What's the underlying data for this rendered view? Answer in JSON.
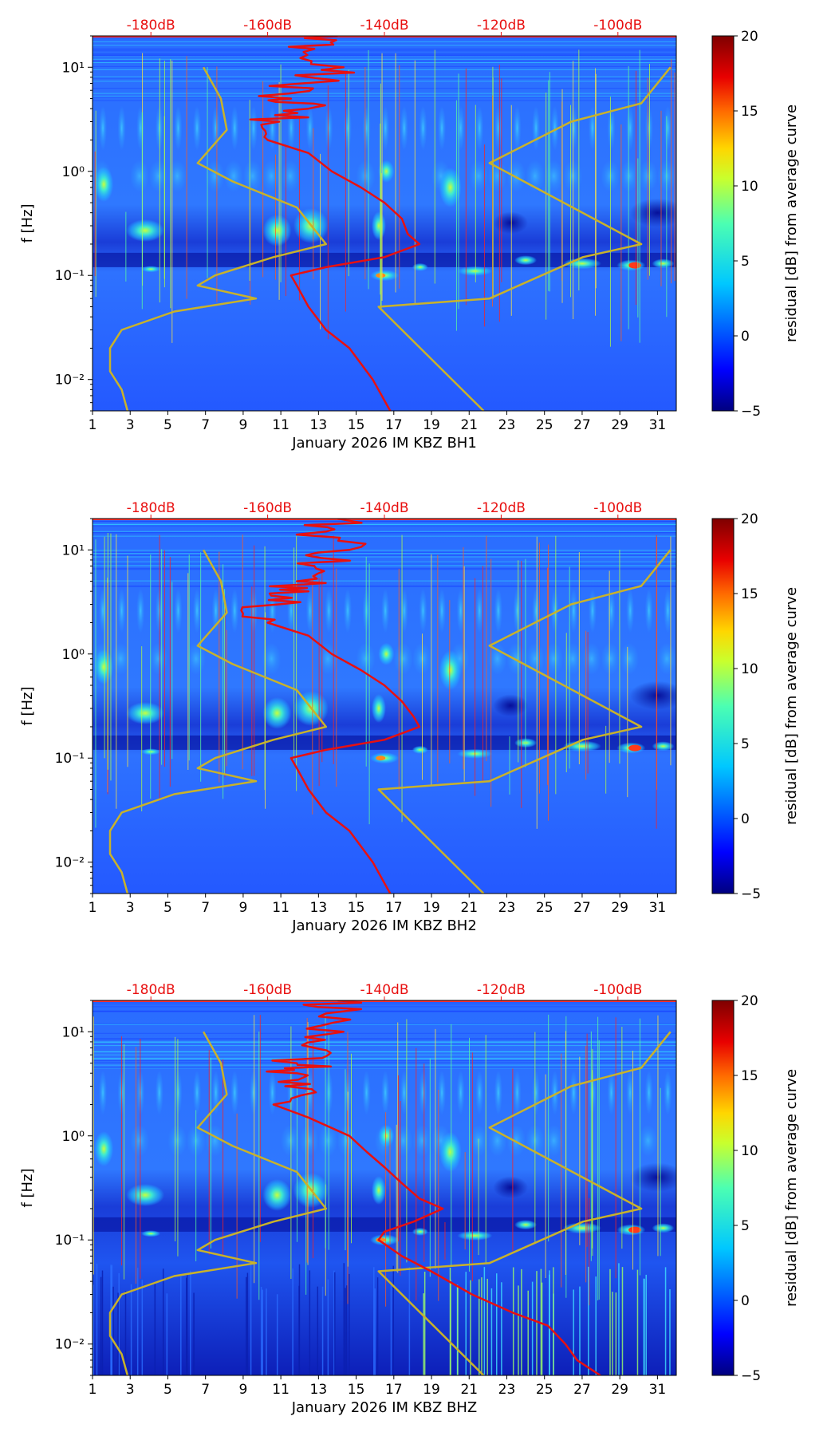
{
  "chart_data": [
    {
      "type": "heatmap",
      "channel": "BH1",
      "xlabel": "January 2026 IM KBZ  BH1",
      "ylabel": "f [Hz]",
      "x_ticks": [
        "1",
        "3",
        "5",
        "7",
        "9",
        "11",
        "13",
        "15",
        "17",
        "19",
        "21",
        "23",
        "25",
        "27",
        "29",
        "31"
      ],
      "y_ticks": [
        "10⁻²",
        "10⁻¹",
        "10⁰",
        "10¹"
      ],
      "top_ticks": [
        "-180dB",
        "-160dB",
        "-140dB",
        "-120dB",
        "-100dB"
      ],
      "colorbar": {
        "label": "residual [dB] from average curve",
        "ticks": [
          "−5",
          "0",
          "5",
          "10",
          "15",
          "20"
        ],
        "range": [
          -5,
          20
        ]
      },
      "day_range": [
        1,
        32
      ],
      "freq_range": [
        0.005,
        20
      ],
      "noise_db_range": [
        -190,
        -90
      ],
      "median_curve": [
        [
          20,
          -148
        ],
        [
          15,
          -152
        ],
        [
          10,
          -147
        ],
        [
          7,
          -154
        ],
        [
          5,
          -156
        ],
        [
          4,
          -153
        ],
        [
          3,
          -158
        ],
        [
          2,
          -160
        ],
        [
          1.5,
          -153
        ],
        [
          1,
          -149
        ],
        [
          0.7,
          -144
        ],
        [
          0.5,
          -140
        ],
        [
          0.35,
          -137
        ],
        [
          0.25,
          -136
        ],
        [
          0.2,
          -134
        ],
        [
          0.15,
          -140
        ],
        [
          0.12,
          -150
        ],
        [
          0.1,
          -156
        ],
        [
          0.08,
          -155
        ],
        [
          0.05,
          -153
        ],
        [
          0.03,
          -150
        ],
        [
          0.02,
          -146
        ],
        [
          0.01,
          -142
        ],
        [
          0.005,
          -139
        ]
      ],
      "model_low": [
        [
          10,
          -171
        ],
        [
          5,
          -168
        ],
        [
          2.5,
          -167
        ],
        [
          1.2,
          -172
        ],
        [
          0.8,
          -166
        ],
        [
          0.45,
          -155
        ],
        [
          0.2,
          -150
        ],
        [
          0.15,
          -159
        ],
        [
          0.1,
          -169
        ],
        [
          0.08,
          -172
        ],
        [
          0.06,
          -162
        ],
        [
          0.045,
          -176
        ],
        [
          0.03,
          -185
        ],
        [
          0.02,
          -187
        ],
        [
          0.012,
          -187
        ],
        [
          0.008,
          -185
        ],
        [
          0.005,
          -184
        ]
      ],
      "model_high": [
        [
          10,
          -91
        ],
        [
          4.5,
          -96
        ],
        [
          3,
          -108
        ],
        [
          1.2,
          -122
        ],
        [
          0.2,
          -96
        ],
        [
          0.15,
          -106
        ],
        [
          0.06,
          -122
        ],
        [
          0.05,
          -141
        ],
        [
          0.005,
          -123
        ]
      ]
    },
    {
      "type": "heatmap",
      "channel": "BH2",
      "xlabel": "January 2026 IM KBZ  BH2",
      "ylabel": "f [Hz]",
      "x_ticks": [
        "1",
        "3",
        "5",
        "7",
        "9",
        "11",
        "13",
        "15",
        "17",
        "19",
        "21",
        "23",
        "25",
        "27",
        "29",
        "31"
      ],
      "y_ticks": [
        "10⁻²",
        "10⁻¹",
        "10⁰",
        "10¹"
      ],
      "top_ticks": [
        "-180dB",
        "-160dB",
        "-140dB",
        "-120dB",
        "-100dB"
      ],
      "colorbar": {
        "label": "residual [dB] from average curve",
        "ticks": [
          "−5",
          "0",
          "5",
          "10",
          "15",
          "20"
        ],
        "range": [
          -5,
          20
        ]
      },
      "day_range": [
        1,
        32
      ],
      "freq_range": [
        0.005,
        20
      ],
      "noise_db_range": [
        -190,
        -90
      ],
      "median_curve": [
        [
          20,
          -148
        ],
        [
          15,
          -150
        ],
        [
          10,
          -146
        ],
        [
          7,
          -152
        ],
        [
          5,
          -155
        ],
        [
          4,
          -153
        ],
        [
          3,
          -158
        ],
        [
          2,
          -160
        ],
        [
          1.5,
          -153
        ],
        [
          1,
          -149
        ],
        [
          0.7,
          -144
        ],
        [
          0.5,
          -140
        ],
        [
          0.35,
          -137
        ],
        [
          0.25,
          -135
        ],
        [
          0.2,
          -134
        ],
        [
          0.15,
          -140
        ],
        [
          0.12,
          -150
        ],
        [
          0.1,
          -156
        ],
        [
          0.08,
          -155
        ],
        [
          0.05,
          -153
        ],
        [
          0.03,
          -150
        ],
        [
          0.02,
          -146
        ],
        [
          0.01,
          -142
        ],
        [
          0.005,
          -139
        ]
      ],
      "model_low": [
        [
          10,
          -171
        ],
        [
          5,
          -168
        ],
        [
          2.5,
          -167
        ],
        [
          1.2,
          -172
        ],
        [
          0.8,
          -166
        ],
        [
          0.45,
          -155
        ],
        [
          0.2,
          -150
        ],
        [
          0.15,
          -159
        ],
        [
          0.1,
          -169
        ],
        [
          0.08,
          -172
        ],
        [
          0.06,
          -162
        ],
        [
          0.045,
          -176
        ],
        [
          0.03,
          -185
        ],
        [
          0.02,
          -187
        ],
        [
          0.012,
          -187
        ],
        [
          0.008,
          -185
        ],
        [
          0.005,
          -184
        ]
      ],
      "model_high": [
        [
          10,
          -91
        ],
        [
          4.5,
          -96
        ],
        [
          3,
          -108
        ],
        [
          1.2,
          -122
        ],
        [
          0.2,
          -96
        ],
        [
          0.15,
          -106
        ],
        [
          0.06,
          -122
        ],
        [
          0.05,
          -141
        ],
        [
          0.005,
          -123
        ]
      ]
    },
    {
      "type": "heatmap",
      "channel": "BHZ",
      "xlabel": "January 2026 IM KBZ  BHZ",
      "ylabel": "f [Hz]",
      "x_ticks": [
        "1",
        "3",
        "5",
        "7",
        "9",
        "11",
        "13",
        "15",
        "17",
        "19",
        "21",
        "23",
        "25",
        "27",
        "29",
        "31"
      ],
      "y_ticks": [
        "10⁻²",
        "10⁻¹",
        "10⁰",
        "10¹"
      ],
      "top_ticks": [
        "-180dB",
        "-160dB",
        "-140dB",
        "-120dB",
        "-100dB"
      ],
      "colorbar": {
        "label": "residual [dB] from average curve",
        "ticks": [
          "−5",
          "0",
          "5",
          "10",
          "15",
          "20"
        ],
        "range": [
          -5,
          20
        ]
      },
      "day_range": [
        1,
        32
      ],
      "freq_range": [
        0.005,
        20
      ],
      "noise_db_range": [
        -190,
        -90
      ],
      "median_curve": [
        [
          20,
          -148
        ],
        [
          15,
          -150
        ],
        [
          10,
          -147
        ],
        [
          7,
          -152
        ],
        [
          5,
          -155
        ],
        [
          4,
          -155
        ],
        [
          3,
          -157
        ],
        [
          2,
          -159
        ],
        [
          1.5,
          -153
        ],
        [
          1,
          -146
        ],
        [
          0.7,
          -143
        ],
        [
          0.5,
          -140
        ],
        [
          0.35,
          -137
        ],
        [
          0.25,
          -134
        ],
        [
          0.2,
          -130
        ],
        [
          0.15,
          -135
        ],
        [
          0.12,
          -140
        ],
        [
          0.1,
          -141
        ],
        [
          0.07,
          -137
        ],
        [
          0.05,
          -132
        ],
        [
          0.03,
          -125
        ],
        [
          0.02,
          -118
        ],
        [
          0.015,
          -112
        ],
        [
          0.01,
          -109
        ],
        [
          0.007,
          -107
        ],
        [
          0.005,
          -103
        ]
      ],
      "model_low": [
        [
          10,
          -171
        ],
        [
          5,
          -168
        ],
        [
          2.5,
          -167
        ],
        [
          1.2,
          -172
        ],
        [
          0.8,
          -166
        ],
        [
          0.45,
          -155
        ],
        [
          0.2,
          -150
        ],
        [
          0.15,
          -159
        ],
        [
          0.1,
          -169
        ],
        [
          0.08,
          -172
        ],
        [
          0.06,
          -162
        ],
        [
          0.045,
          -176
        ],
        [
          0.03,
          -185
        ],
        [
          0.02,
          -187
        ],
        [
          0.012,
          -187
        ],
        [
          0.008,
          -185
        ],
        [
          0.005,
          -184
        ]
      ],
      "model_high": [
        [
          10,
          -91
        ],
        [
          4.5,
          -96
        ],
        [
          3,
          -108
        ],
        [
          1.2,
          -122
        ],
        [
          0.2,
          -96
        ],
        [
          0.15,
          -106
        ],
        [
          0.06,
          -122
        ],
        [
          0.05,
          -141
        ],
        [
          0.005,
          -123
        ]
      ]
    }
  ]
}
